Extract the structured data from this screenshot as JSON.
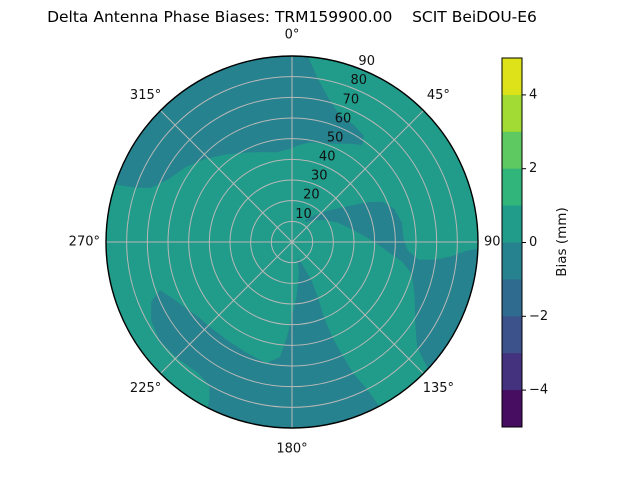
{
  "figure": {
    "title": "Delta Antenna Phase Biases: TRM159900.00    SCIT BeiDOU-E6",
    "background": "#ffffff"
  },
  "chart_data": {
    "type": "filled_contour_polar",
    "title": "Delta Antenna Phase Biases: TRM159900.00    SCIT BeiDOU-E6",
    "grid_on": true,
    "grid_color": "#b8b8b8",
    "outline_color": "#000000",
    "radial_max": 90,
    "radial_ticks": [
      10,
      20,
      30,
      40,
      50,
      60,
      70,
      80,
      90
    ],
    "radial_label_angle": 22.5,
    "angular_ticks": [
      {
        "angle": 0,
        "label": "0°"
      },
      {
        "angle": 45,
        "label": "45°"
      },
      {
        "angle": 90,
        "label": "90"
      },
      {
        "angle": 135,
        "label": "135°"
      },
      {
        "angle": 180,
        "label": "180°"
      },
      {
        "angle": 225,
        "label": "225°"
      },
      {
        "angle": 270,
        "label": "270°"
      },
      {
        "angle": 315,
        "label": "315°"
      }
    ],
    "base_band": {
      "bias_range_mm": [
        0,
        1
      ],
      "color": "#219c8a"
    },
    "regions": [
      {
        "name": "negative-band-upper-left-region",
        "bias_range_mm": [
          -1,
          0
        ],
        "color": "#26828e",
        "points": [
          [
            288,
            90
          ],
          [
            296,
            90
          ],
          [
            304,
            90
          ],
          [
            312,
            90
          ],
          [
            320,
            90
          ],
          [
            328,
            90
          ],
          [
            336,
            90
          ],
          [
            344,
            90
          ],
          [
            352,
            90
          ],
          [
            0,
            90
          ],
          [
            5,
            90
          ],
          [
            9,
            80
          ],
          [
            14,
            72
          ],
          [
            20,
            66
          ],
          [
            28,
            64
          ],
          [
            34,
            62
          ],
          [
            36,
            58
          ],
          [
            30,
            55
          ],
          [
            24,
            52
          ],
          [
            17,
            50
          ],
          [
            10,
            49
          ],
          [
            4,
            47
          ],
          [
            358,
            45
          ],
          [
            350,
            44
          ],
          [
            341,
            46
          ],
          [
            332,
            49
          ],
          [
            323,
            53
          ],
          [
            314,
            58
          ],
          [
            305,
            63
          ],
          [
            297,
            67
          ],
          [
            291,
            73
          ],
          [
            289,
            81
          ]
        ]
      },
      {
        "name": "negative-band-center-right-streak-region",
        "bias_range_mm": [
          -1,
          0
        ],
        "color": "#26828e",
        "points": [
          [
            30,
            12
          ],
          [
            40,
            17
          ],
          [
            50,
            24
          ],
          [
            58,
            33
          ],
          [
            62,
            41
          ],
          [
            66,
            48
          ],
          [
            72,
            52
          ],
          [
            80,
            54
          ],
          [
            88,
            54
          ],
          [
            94,
            56
          ],
          [
            98,
            62
          ],
          [
            97,
            70
          ],
          [
            95,
            78
          ],
          [
            93,
            84
          ],
          [
            92,
            90
          ],
          [
            99,
            90
          ],
          [
            106,
            90
          ],
          [
            113,
            90
          ],
          [
            120,
            90
          ],
          [
            127,
            90
          ],
          [
            133,
            90
          ],
          [
            130,
            79
          ],
          [
            123,
            71
          ],
          [
            114,
            65
          ],
          [
            105,
            60
          ],
          [
            100,
            54
          ],
          [
            96,
            47
          ],
          [
            91,
            41
          ],
          [
            85,
            35
          ],
          [
            77,
            29
          ],
          [
            67,
            24
          ],
          [
            56,
            19
          ],
          [
            45,
            15
          ],
          [
            36,
            12
          ]
        ]
      },
      {
        "name": "negative-band-bottom-wedge-region",
        "bias_range_mm": [
          -1,
          0
        ],
        "color": "#26828e",
        "points": [
          [
            160,
            8
          ],
          [
            168,
            16
          ],
          [
            175,
            26
          ],
          [
            180,
            36
          ],
          [
            183,
            46
          ],
          [
            186,
            56
          ],
          [
            192,
            60
          ],
          [
            202,
            58
          ],
          [
            212,
            57
          ],
          [
            222,
            57
          ],
          [
            231,
            58
          ],
          [
            239,
            61
          ],
          [
            245,
            64
          ],
          [
            250,
            68
          ],
          [
            247,
            74
          ],
          [
            241,
            78
          ],
          [
            233,
            80
          ],
          [
            224,
            79
          ],
          [
            216,
            78
          ],
          [
            210,
            80
          ],
          [
            208,
            85
          ],
          [
            207,
            90
          ],
          [
            199,
            90
          ],
          [
            191,
            90
          ],
          [
            183,
            90
          ],
          [
            175,
            90
          ],
          [
            167,
            90
          ],
          [
            159,
            90
          ],
          [
            152,
            90
          ],
          [
            153,
            80
          ],
          [
            155,
            70
          ],
          [
            156,
            60
          ],
          [
            157,
            50
          ],
          [
            157,
            40
          ],
          [
            155,
            30
          ],
          [
            153,
            21
          ],
          [
            155,
            13
          ]
        ]
      }
    ],
    "colorbar": {
      "label": "Bias (mm)",
      "min": -5,
      "max": 5,
      "tick_values": [
        4,
        2,
        0,
        -2,
        -4
      ],
      "tick_labels": [
        "4",
        "2",
        "0",
        "−2",
        "−4"
      ],
      "band_colors_top_to_bottom": [
        "#dde318",
        "#a2db34",
        "#5fc961",
        "#31b57b",
        "#219c8a",
        "#26828e",
        "#2f6b8e",
        "#3b528b",
        "#45327e",
        "#470d60"
      ]
    }
  }
}
